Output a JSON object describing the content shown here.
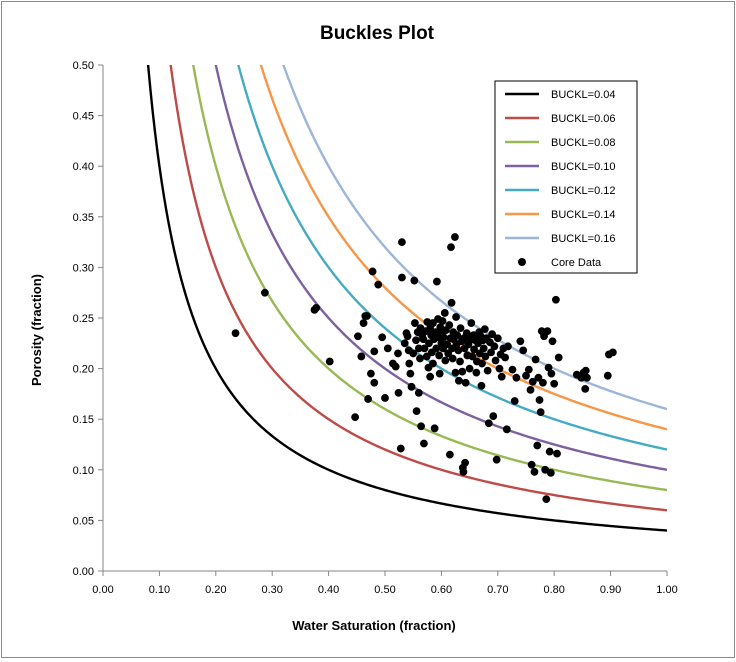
{
  "chart_data": {
    "type": "scatter",
    "title": "Buckles Plot",
    "xlabel": "Water Saturation (fraction)",
    "ylabel": "Porosity (fraction)",
    "xlim": [
      0,
      1
    ],
    "ylim": [
      0,
      0.5
    ],
    "x_ticks": [
      "0.00",
      "0.10",
      "0.20",
      "0.30",
      "0.40",
      "0.50",
      "0.60",
      "0.70",
      "0.80",
      "0.90",
      "1.00"
    ],
    "y_ticks": [
      "0.00",
      "0.05",
      "0.10",
      "0.15",
      "0.20",
      "0.25",
      "0.30",
      "0.35",
      "0.40",
      "0.45",
      "0.50"
    ],
    "grid": false,
    "legend_position": "top-right",
    "curves": [
      {
        "name": "BUCKL=0.04",
        "buckl": 0.04,
        "color": "#000000"
      },
      {
        "name": "BUCKL=0.06",
        "buckl": 0.06,
        "color": "#be4b48"
      },
      {
        "name": "BUCKL=0.08",
        "buckl": 0.08,
        "color": "#98b954"
      },
      {
        "name": "BUCKL=0.10",
        "buckl": 0.1,
        "color": "#7d60a0"
      },
      {
        "name": "BUCKL=0.12",
        "buckl": 0.12,
        "color": "#46aac5"
      },
      {
        "name": "BUCKL=0.14",
        "buckl": 0.14,
        "color": "#f79646"
      },
      {
        "name": "BUCKL=0.16",
        "buckl": 0.16,
        "color": "#9db5d9"
      }
    ],
    "scatter_series": {
      "name": "Core Data",
      "color": "#000000",
      "points": [
        [
          0.235,
          0.235
        ],
        [
          0.287,
          0.275
        ],
        [
          0.375,
          0.258
        ],
        [
          0.378,
          0.26
        ],
        [
          0.402,
          0.207
        ],
        [
          0.447,
          0.152
        ],
        [
          0.452,
          0.232
        ],
        [
          0.458,
          0.212
        ],
        [
          0.462,
          0.245
        ],
        [
          0.465,
          0.252
        ],
        [
          0.468,
          0.252
        ],
        [
          0.47,
          0.17
        ],
        [
          0.475,
          0.195
        ],
        [
          0.478,
          0.296
        ],
        [
          0.481,
          0.186
        ],
        [
          0.481,
          0.217
        ],
        [
          0.488,
          0.283
        ],
        [
          0.495,
          0.231
        ],
        [
          0.5,
          0.171
        ],
        [
          0.505,
          0.22
        ],
        [
          0.514,
          0.205
        ],
        [
          0.519,
          0.202
        ],
        [
          0.523,
          0.215
        ],
        [
          0.524,
          0.176
        ],
        [
          0.528,
          0.121
        ],
        [
          0.53,
          0.325
        ],
        [
          0.53,
          0.29
        ],
        [
          0.535,
          0.225
        ],
        [
          0.538,
          0.235
        ],
        [
          0.54,
          0.232
        ],
        [
          0.542,
          0.218
        ],
        [
          0.543,
          0.205
        ],
        [
          0.545,
          0.195
        ],
        [
          0.547,
          0.182
        ],
        [
          0.55,
          0.215
        ],
        [
          0.552,
          0.287
        ],
        [
          0.553,
          0.245
        ],
        [
          0.555,
          0.228
        ],
        [
          0.556,
          0.158
        ],
        [
          0.558,
          0.236
        ],
        [
          0.56,
          0.176
        ],
        [
          0.56,
          0.22
        ],
        [
          0.562,
          0.21
        ],
        [
          0.563,
          0.24
        ],
        [
          0.564,
          0.143
        ],
        [
          0.566,
          0.233
        ],
        [
          0.568,
          0.229
        ],
        [
          0.569,
          0.126
        ],
        [
          0.57,
          0.22
        ],
        [
          0.572,
          0.237
        ],
        [
          0.574,
          0.212
        ],
        [
          0.575,
          0.246
        ],
        [
          0.577,
          0.201
        ],
        [
          0.578,
          0.225
        ],
        [
          0.58,
          0.24
        ],
        [
          0.58,
          0.192
        ],
        [
          0.582,
          0.233
        ],
        [
          0.583,
          0.216
        ],
        [
          0.585,
          0.245
        ],
        [
          0.585,
          0.205
        ],
        [
          0.587,
          0.229
        ],
        [
          0.588,
          0.141
        ],
        [
          0.59,
          0.236
        ],
        [
          0.591,
          0.22
        ],
        [
          0.592,
          0.286
        ],
        [
          0.594,
          0.249
        ],
        [
          0.595,
          0.231
        ],
        [
          0.596,
          0.213
        ],
        [
          0.597,
          0.195
        ],
        [
          0.598,
          0.241
        ],
        [
          0.6,
          0.225
        ],
        [
          0.601,
          0.236
        ],
        [
          0.602,
          0.247
        ],
        [
          0.603,
          0.22
        ],
        [
          0.604,
          0.231
        ],
        [
          0.606,
          0.255
        ],
        [
          0.607,
          0.208
        ],
        [
          0.608,
          0.238
        ],
        [
          0.61,
          0.224
        ],
        [
          0.612,
          0.215
        ],
        [
          0.614,
          0.243
        ],
        [
          0.615,
          0.115
        ],
        [
          0.616,
          0.23
        ],
        [
          0.617,
          0.32
        ],
        [
          0.618,
          0.265
        ],
        [
          0.619,
          0.22
        ],
        [
          0.62,
          0.21
        ],
        [
          0.621,
          0.236
        ],
        [
          0.622,
          0.229
        ],
        [
          0.624,
          0.33
        ],
        [
          0.625,
          0.196
        ],
        [
          0.626,
          0.251
        ],
        [
          0.627,
          0.224
        ],
        [
          0.628,
          0.233
        ],
        [
          0.63,
          0.218
        ],
        [
          0.631,
          0.188
        ],
        [
          0.633,
          0.207
        ],
        [
          0.634,
          0.24
        ],
        [
          0.636,
          0.227
        ],
        [
          0.637,
          0.197
        ],
        [
          0.638,
          0.102
        ],
        [
          0.639,
          0.098
        ],
        [
          0.64,
          0.23
        ],
        [
          0.641,
          0.22
        ],
        [
          0.642,
          0.107
        ],
        [
          0.643,
          0.186
        ],
        [
          0.645,
          0.235
        ],
        [
          0.646,
          0.213
        ],
        [
          0.648,
          0.224
        ],
        [
          0.65,
          0.2
        ],
        [
          0.652,
          0.229
        ],
        [
          0.653,
          0.245
        ],
        [
          0.655,
          0.212
        ],
        [
          0.657,
          0.233
        ],
        [
          0.658,
          0.219
        ],
        [
          0.66,
          0.228
        ],
        [
          0.662,
          0.196
        ],
        [
          0.663,
          0.207
        ],
        [
          0.665,
          0.225
        ],
        [
          0.667,
          0.236
        ],
        [
          0.668,
          0.215
        ],
        [
          0.67,
          0.232
        ],
        [
          0.671,
          0.183
        ],
        [
          0.672,
          0.205
        ],
        [
          0.674,
          0.228
        ],
        [
          0.675,
          0.22
        ],
        [
          0.677,
          0.239
        ],
        [
          0.678,
          0.212
        ],
        [
          0.68,
          0.23
        ],
        [
          0.682,
          0.198
        ],
        [
          0.684,
          0.146
        ],
        [
          0.686,
          0.226
        ],
        [
          0.688,
          0.216
        ],
        [
          0.69,
          0.234
        ],
        [
          0.692,
          0.153
        ],
        [
          0.694,
          0.222
        ],
        [
          0.696,
          0.208
        ],
        [
          0.698,
          0.11
        ],
        [
          0.7,
          0.23
        ],
        [
          0.703,
          0.2
        ],
        [
          0.705,
          0.214
        ],
        [
          0.707,
          0.192
        ],
        [
          0.71,
          0.22
        ],
        [
          0.713,
          0.211
        ],
        [
          0.716,
          0.14
        ],
        [
          0.718,
          0.222
        ],
        [
          0.726,
          0.199
        ],
        [
          0.73,
          0.168
        ],
        [
          0.733,
          0.191
        ],
        [
          0.74,
          0.227
        ],
        [
          0.745,
          0.218
        ],
        [
          0.75,
          0.193
        ],
        [
          0.755,
          0.199
        ],
        [
          0.758,
          0.179
        ],
        [
          0.76,
          0.105
        ],
        [
          0.762,
          0.187
        ],
        [
          0.765,
          0.098
        ],
        [
          0.767,
          0.209
        ],
        [
          0.77,
          0.124
        ],
        [
          0.772,
          0.191
        ],
        [
          0.774,
          0.169
        ],
        [
          0.776,
          0.157
        ],
        [
          0.778,
          0.237
        ],
        [
          0.78,
          0.186
        ],
        [
          0.782,
          0.232
        ],
        [
          0.784,
          0.1
        ],
        [
          0.786,
          0.071
        ],
        [
          0.788,
          0.237
        ],
        [
          0.79,
          0.201
        ],
        [
          0.792,
          0.118
        ],
        [
          0.794,
          0.097
        ],
        [
          0.795,
          0.195
        ],
        [
          0.797,
          0.227
        ],
        [
          0.8,
          0.185
        ],
        [
          0.803,
          0.268
        ],
        [
          0.805,
          0.116
        ],
        [
          0.808,
          0.211
        ],
        [
          0.84,
          0.194
        ],
        [
          0.848,
          0.191
        ],
        [
          0.852,
          0.196
        ],
        [
          0.855,
          0.18
        ],
        [
          0.856,
          0.198
        ],
        [
          0.858,
          0.191
        ],
        [
          0.895,
          0.193
        ],
        [
          0.897,
          0.214
        ],
        [
          0.904,
          0.216
        ]
      ]
    }
  }
}
